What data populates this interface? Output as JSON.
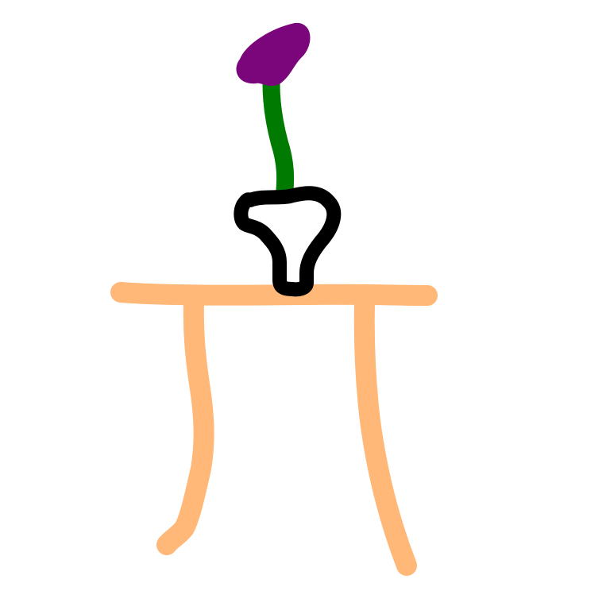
{
  "scene": {
    "background": "#ffffff",
    "objects": [
      {
        "name": "table",
        "color": "#ffb878"
      },
      {
        "name": "vase",
        "color": "#000000"
      },
      {
        "name": "flower-stem",
        "color": "#007a00"
      },
      {
        "name": "flower-head",
        "color": "#7b057b"
      }
    ]
  },
  "colors": {
    "table": "#ffb878",
    "vase": "#000000",
    "stem": "#007a00",
    "flower": "#7b057b",
    "vase_fill": "#ffffff"
  }
}
